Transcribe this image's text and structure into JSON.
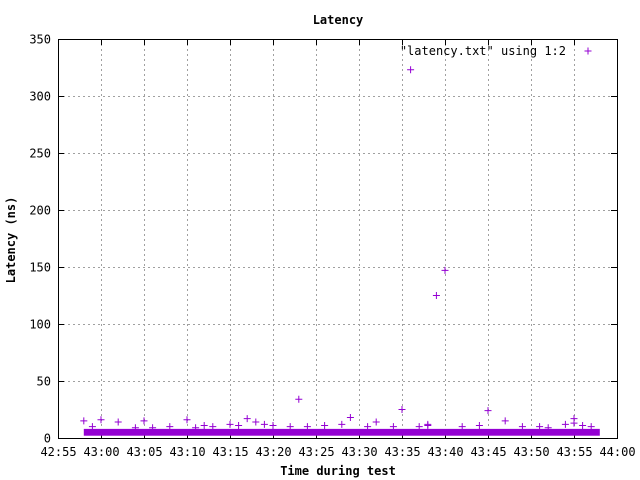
{
  "chart_data": {
    "type": "scatter",
    "title": "Latency",
    "xlabel": "Time during test",
    "ylabel": "Latency (ns)",
    "xlim": [
      "42:55",
      "44:00"
    ],
    "ylim": [
      0,
      350
    ],
    "x_ticks": [
      "42:55",
      "43:00",
      "43:05",
      "43:10",
      "43:15",
      "43:20",
      "43:25",
      "43:30",
      "43:35",
      "43:40",
      "43:45",
      "43:50",
      "43:55",
      "44:00"
    ],
    "y_ticks": [
      0,
      50,
      100,
      150,
      200,
      250,
      300,
      350
    ],
    "grid": true,
    "legend_position": "top-right",
    "marker": "+",
    "series": [
      {
        "name": "\"latency.txt\" using 1:2",
        "color": "#9400d3",
        "points": [
          [
            "42:58",
            15
          ],
          [
            "42:59",
            10
          ],
          [
            "43:00",
            16
          ],
          [
            "43:02",
            14
          ],
          [
            "43:04",
            9
          ],
          [
            "43:05",
            15
          ],
          [
            "43:06",
            9
          ],
          [
            "43:08",
            10
          ],
          [
            "43:10",
            16
          ],
          [
            "43:11",
            9
          ],
          [
            "43:12",
            11
          ],
          [
            "43:13",
            10
          ],
          [
            "43:15",
            12
          ],
          [
            "43:16",
            11
          ],
          [
            "43:17",
            17
          ],
          [
            "43:18",
            14
          ],
          [
            "43:19",
            12
          ],
          [
            "43:20",
            11
          ],
          [
            "43:22",
            10
          ],
          [
            "43:23",
            34
          ],
          [
            "43:24",
            10
          ],
          [
            "43:26",
            11
          ],
          [
            "43:28",
            12
          ],
          [
            "43:29",
            18
          ],
          [
            "43:31",
            10
          ],
          [
            "43:32",
            14
          ],
          [
            "43:34",
            10
          ],
          [
            "43:35",
            25
          ],
          [
            "43:36",
            323
          ],
          [
            "43:37",
            10
          ],
          [
            "43:38",
            11
          ],
          [
            "43:38",
            12
          ],
          [
            "43:39",
            125
          ],
          [
            "43:40",
            147
          ],
          [
            "43:42",
            10
          ],
          [
            "43:44",
            11
          ],
          [
            "43:45",
            24
          ],
          [
            "43:47",
            15
          ],
          [
            "43:49",
            10
          ],
          [
            "43:51",
            10
          ],
          [
            "43:52",
            9
          ],
          [
            "43:54",
            12
          ],
          [
            "43:55",
            17
          ],
          [
            "43:55",
            13
          ],
          [
            "43:56",
            11
          ],
          [
            "43:57",
            10
          ]
        ],
        "baseline_band": {
          "x_range": [
            "42:58",
            "43:58"
          ],
          "y_range": [
            2,
            8
          ]
        }
      }
    ]
  }
}
